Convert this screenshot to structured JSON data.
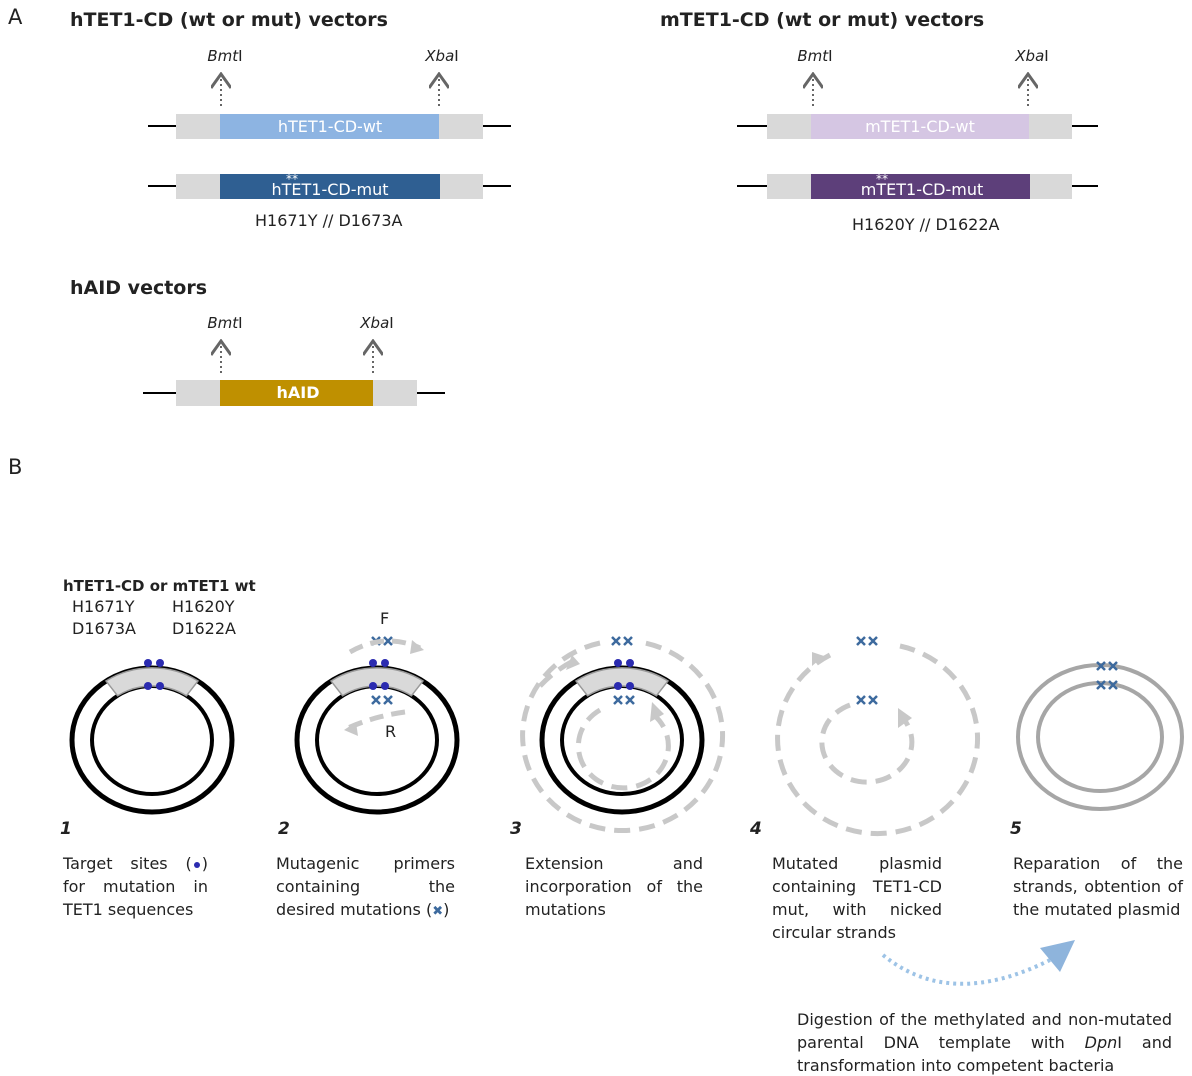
{
  "panel_a": {
    "label": "A",
    "h_tet1": {
      "title": "hTET1-CD (wt or mut) vectors",
      "sites": [
        {
          "italic": "Bmt",
          "roman": "I"
        },
        {
          "italic": "Xba",
          "roman": "I"
        }
      ],
      "wt": "hTET1-CD-wt",
      "stars": "**",
      "mut": "hTET1-CD-mut",
      "mutations": "H1671Y // D1673A"
    },
    "m_tet1": {
      "title": "mTET1-CD (wt or mut) vectors",
      "sites": [
        {
          "italic": "Bmt",
          "roman": "I"
        },
        {
          "italic": "Xba",
          "roman": "I"
        }
      ],
      "wt": "mTET1-CD-wt",
      "stars": "**",
      "mut": "mTET1-CD-mut",
      "mutations": "H1620Y // D1622A"
    },
    "h_aid": {
      "title": "hAID vectors",
      "sites": [
        {
          "italic": "Bmt",
          "roman": "I"
        },
        {
          "italic": "Xba",
          "roman": "I"
        }
      ],
      "insert": "hAID"
    }
  },
  "panel_b": {
    "label": "B",
    "start": {
      "title": "hTET1-CD or mTET1 wt",
      "sites": [
        "H1671Y",
        "H1620Y",
        "D1673A",
        "D1622A"
      ]
    },
    "primers": [
      "F",
      "R"
    ],
    "steps": [
      {
        "number": "1",
        "text": [
          "Target sites (",
          ") for mutation in TET1 sequences"
        ]
      },
      {
        "number": "2",
        "text": [
          "Mutagenic primers containing the desired mutations (",
          ")"
        ]
      },
      {
        "number": "3",
        "text": [
          "Extension and incorporation of the mutations"
        ]
      },
      {
        "number": "4",
        "text": [
          "Mutated plasmid containing TET1-CD mut, with nicked circular strands"
        ]
      },
      {
        "number": "5",
        "text": [
          "Reparation of the strands, obtention of the mutated plasmid"
        ]
      }
    ],
    "digestion": {
      "before": "Digestion of the methylated and non-mutated parental DNA template with ",
      "italic": "Dpn",
      "after": "I and transformation into competent bacteria"
    }
  }
}
